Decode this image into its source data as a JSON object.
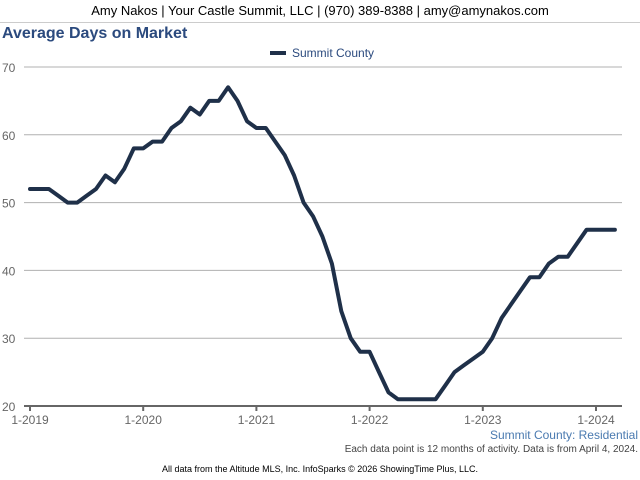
{
  "header": "Amy Nakos | Your Castle Summit, LLC | (970) 389-8388 | amy@amynakos.com",
  "chart_data": {
    "type": "line",
    "title": "Average Days on Market",
    "legend": [
      "Summit County"
    ],
    "legend_placement": "top-center",
    "subtitle": "Summit County: Residential",
    "ylim": [
      20,
      70
    ],
    "yticks": [
      "20",
      "30",
      "40",
      "50",
      "60",
      "70"
    ],
    "xticks": [
      "1-2019",
      "1-2020",
      "1-2021",
      "1-2022",
      "1-2023",
      "1-2024"
    ],
    "x_start": "1-2019",
    "x_end": "3-2024",
    "series": [
      {
        "name": "Summit County",
        "color": "#1f3049",
        "values": [
          52,
          52,
          52,
          51,
          50,
          50,
          51,
          52,
          54,
          53,
          55,
          58,
          58,
          59,
          59,
          61,
          62,
          64,
          63,
          65,
          65,
          67,
          65,
          62,
          61,
          61,
          59,
          57,
          54,
          50,
          48,
          45,
          41,
          34,
          30,
          28,
          28,
          25,
          22,
          21,
          21,
          21,
          21,
          21,
          23,
          25,
          26,
          27,
          28,
          30,
          33,
          35,
          37,
          39,
          39,
          41,
          42,
          42,
          44,
          46,
          46,
          46,
          46
        ]
      }
    ]
  },
  "note": "Each data point is 12 months of activity. Data is from April 4, 2024.",
  "footer": "All data from the Altitude MLS, Inc. InfoSparks © 2026 ShowingTime Plus, LLC."
}
